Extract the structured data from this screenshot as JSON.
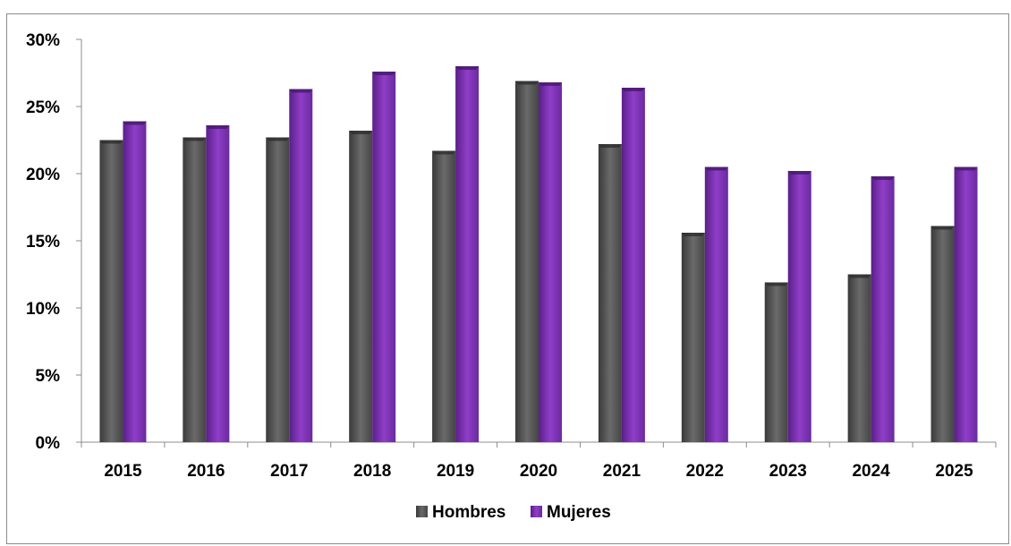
{
  "chart_data": {
    "type": "bar",
    "title": "",
    "xlabel": "",
    "ylabel": "",
    "categories": [
      "2015",
      "2016",
      "2017",
      "2018",
      "2019",
      "2020",
      "2021",
      "2022",
      "2023",
      "2024",
      "2025"
    ],
    "series": [
      {
        "name": "Hombres",
        "color": "#595959",
        "values": [
          22.5,
          22.7,
          22.7,
          23.2,
          21.7,
          26.9,
          22.2,
          15.6,
          11.9,
          12.5,
          16.1
        ]
      },
      {
        "name": "Mujeres",
        "color": "#7B2FB0",
        "values": [
          23.9,
          23.6,
          26.3,
          27.6,
          28.0,
          26.8,
          26.4,
          20.5,
          20.2,
          19.8,
          20.5
        ]
      }
    ],
    "ylim": [
      0,
      30
    ],
    "yticks": [
      0,
      5,
      10,
      15,
      20,
      25,
      30
    ],
    "ytick_labels": [
      "0%",
      "5%",
      "10%",
      "15%",
      "20%",
      "25%",
      "30%"
    ],
    "grid": false,
    "legend_position": "bottom"
  }
}
